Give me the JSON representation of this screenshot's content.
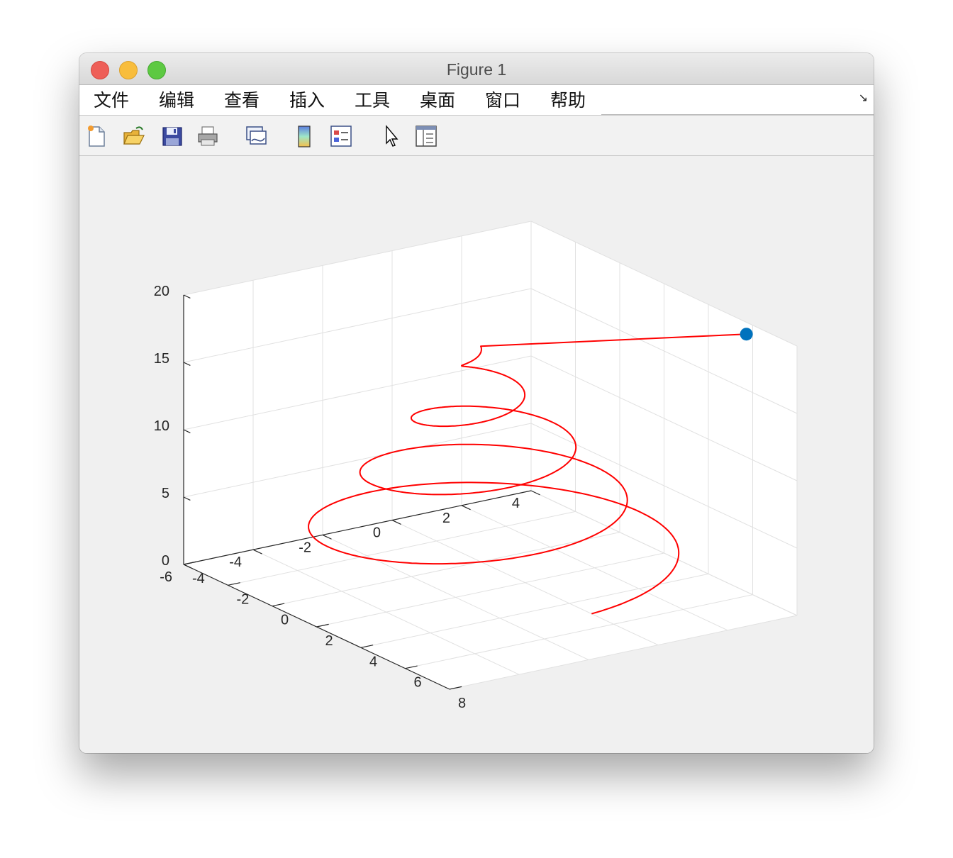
{
  "window": {
    "title": "Figure 1"
  },
  "menu": {
    "items": [
      "文件",
      "编辑",
      "查看",
      "插入",
      "工具",
      "桌面",
      "窗口",
      "帮助"
    ]
  },
  "toolbar": {
    "buttons": [
      {
        "name": "new-figure-icon"
      },
      {
        "name": "open-file-icon"
      },
      {
        "name": "save-icon"
      },
      {
        "name": "print-icon"
      },
      {
        "name": "link-plot-icon"
      },
      {
        "name": "colorbar-icon"
      },
      {
        "name": "legend-icon"
      },
      {
        "name": "edit-plot-pointer-icon"
      },
      {
        "name": "property-inspector-icon"
      }
    ]
  },
  "chart_data": {
    "type": "line",
    "title": "",
    "xlabel": "",
    "ylabel": "",
    "zlabel": "",
    "xlim": [
      -4,
      8
    ],
    "ylim": [
      -6,
      4
    ],
    "zlim": [
      0,
      20
    ],
    "xticks": [
      "-4",
      "-2",
      "0",
      "2",
      "4",
      "6",
      "8"
    ],
    "yticks": [
      "-6",
      "-4",
      "-2",
      "0",
      "2",
      "4"
    ],
    "zticks": [
      "0",
      "5",
      "10",
      "15",
      "20"
    ],
    "grid": true,
    "view": [
      -37.5,
      30
    ],
    "series": [
      {
        "style": "line",
        "color": "#ff0000",
        "description": "helical spiral, radius decreasing from 5 to ~0 as z rises from 0 to ~17, then straight segment to marker",
        "center": [
          0,
          0
        ],
        "radius_start": 5,
        "z_start": 0,
        "turns": 4,
        "z_per_turn": 4
      },
      {
        "style": "marker",
        "color": "#0072bd",
        "x": [
          6.5
        ],
        "y": [
          3.5
        ],
        "z": [
          20
        ]
      }
    ]
  }
}
